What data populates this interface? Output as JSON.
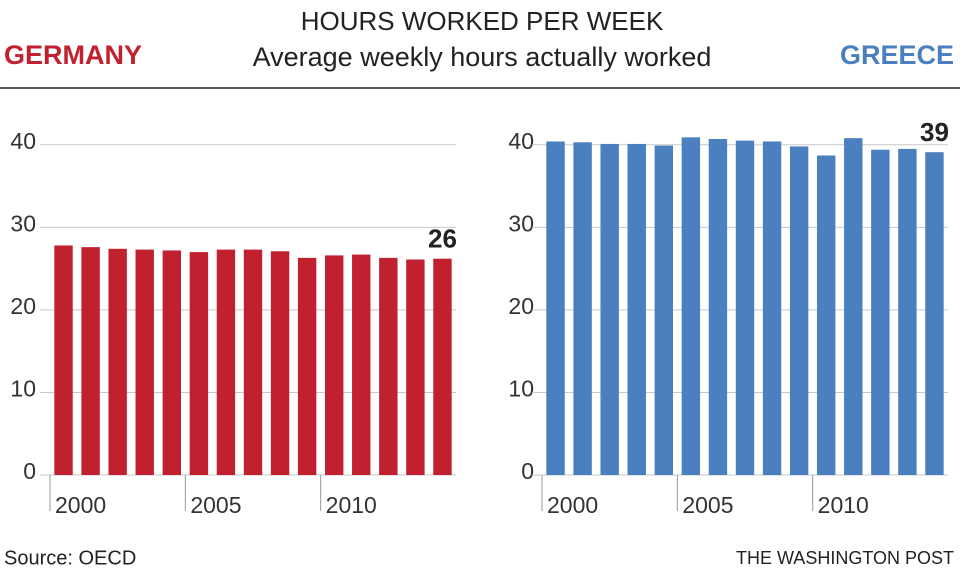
{
  "title": "HOURS WORKED PER WEEK",
  "subtitle": "Average weekly hours actually worked",
  "source": "Source: OECD",
  "credit": "THE WASHINGTON POST",
  "chart_data": [
    {
      "type": "bar",
      "title": "GERMANY",
      "color": "#c1202f",
      "categories": [
        "2000",
        null,
        null,
        null,
        null,
        "2005",
        null,
        null,
        null,
        null,
        "2010",
        null,
        null,
        null,
        null
      ],
      "values": [
        27.8,
        27.6,
        27.4,
        27.3,
        27.2,
        27.0,
        27.3,
        27.3,
        27.1,
        26.3,
        26.6,
        26.7,
        26.3,
        26.1,
        26.2
      ],
      "value_labels": [
        null,
        null,
        null,
        null,
        null,
        null,
        null,
        null,
        null,
        null,
        null,
        null,
        null,
        null,
        "26"
      ],
      "ylim": [
        0,
        43
      ],
      "yticks": [
        0,
        10,
        20,
        30,
        40
      ],
      "grid": true
    },
    {
      "type": "bar",
      "title": "GREECE",
      "color": "#4a7fc0",
      "categories": [
        "2000",
        null,
        null,
        null,
        null,
        "2005",
        null,
        null,
        null,
        null,
        "2010",
        null,
        null,
        null,
        null
      ],
      "values": [
        40.4,
        40.3,
        40.1,
        40.1,
        39.9,
        40.9,
        40.7,
        40.5,
        40.4,
        39.8,
        38.7,
        40.8,
        39.4,
        39.5,
        39.1
      ],
      "value_labels": [
        null,
        null,
        null,
        null,
        null,
        null,
        null,
        null,
        null,
        null,
        null,
        null,
        null,
        null,
        "39"
      ],
      "ylim": [
        0,
        43
      ],
      "yticks": [
        0,
        10,
        20,
        30,
        40
      ],
      "grid": true
    }
  ]
}
